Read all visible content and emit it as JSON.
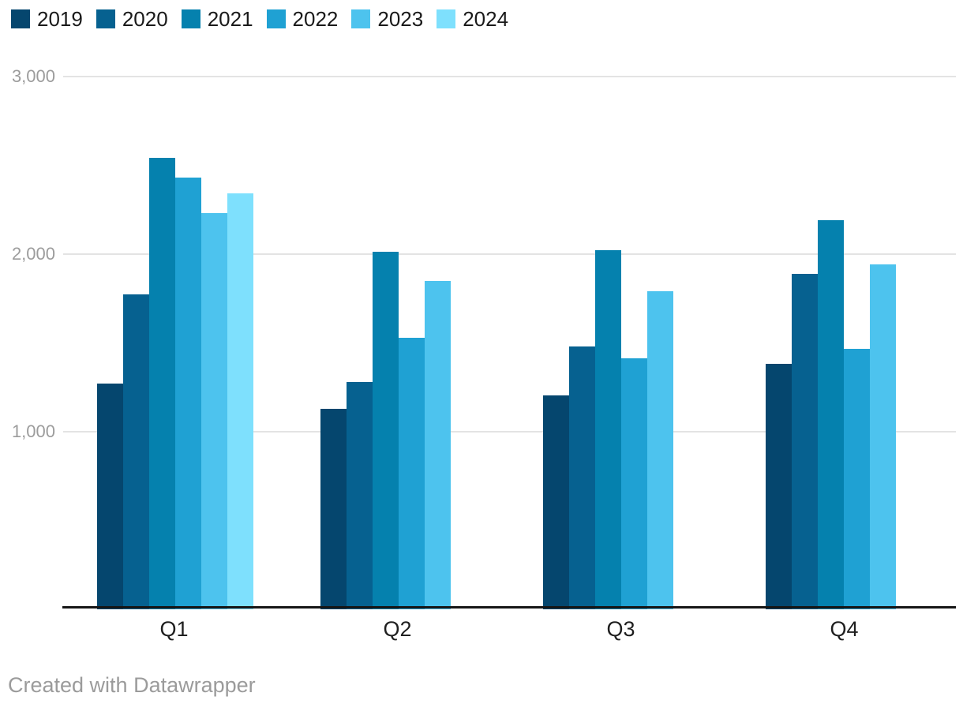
{
  "chart_data": {
    "type": "bar",
    "title": "",
    "categories": [
      "Q1",
      "Q2",
      "Q3",
      "Q4"
    ],
    "series": [
      {
        "name": "2019",
        "color": "#05466e",
        "values": [
          1270,
          1130,
          1205,
          1380
        ]
      },
      {
        "name": "2020",
        "color": "#066190",
        "values": [
          1775,
          1280,
          1480,
          1890
        ]
      },
      {
        "name": "2021",
        "color": "#0581ae",
        "values": [
          2540,
          2015,
          2020,
          2190
        ]
      },
      {
        "name": "2022",
        "color": "#1fa1d3",
        "values": [
          2430,
          1530,
          1415,
          1465
        ]
      },
      {
        "name": "2023",
        "color": "#4dc3ee",
        "values": [
          2230,
          1850,
          1790,
          1940
        ]
      },
      {
        "name": "2024",
        "color": "#7ee0fd",
        "values": [
          2340,
          null,
          null,
          null
        ]
      }
    ],
    "y_ticks": [
      {
        "label": "3,000",
        "value": 3000
      },
      {
        "label": "2,000",
        "value": 2000
      },
      {
        "label": "1,000",
        "value": 1000
      }
    ],
    "ylim": [
      0,
      3000
    ],
    "grid": "horizontal",
    "legend_position": "top",
    "axis_color": "#161616",
    "gridline_color": "#e3e3e3"
  },
  "footer": {
    "credit": "Created with Datawrapper"
  }
}
